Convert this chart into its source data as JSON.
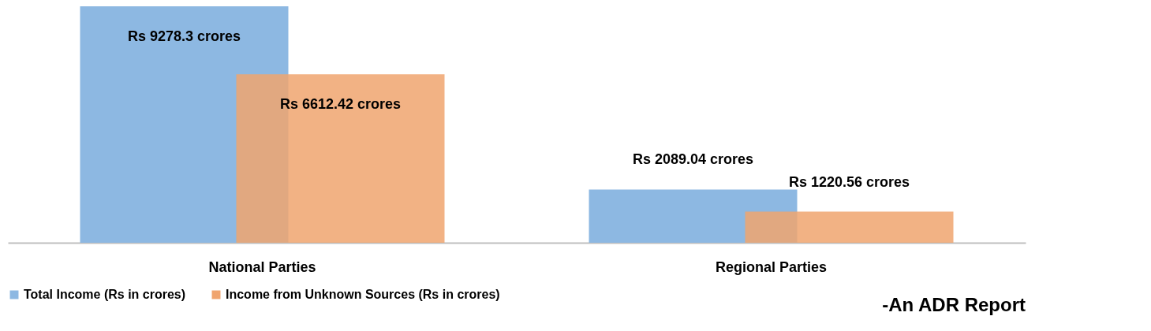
{
  "chart_data": {
    "type": "bar",
    "categories": [
      "National  Parties",
      "Regional  Parties"
    ],
    "series": [
      {
        "name": "Total Income (Rs in crores)",
        "color": "#8db8e2",
        "values": [
          9278.3,
          2089.04
        ],
        "value_labels": [
          "Rs 9278.3 crores",
          "Rs 2089.04 crores"
        ]
      },
      {
        "name": "Income from Unknown Sources  (Rs in crores)",
        "color": "#f0a46e",
        "values": [
          6612.42,
          1220.56
        ],
        "value_labels": [
          "Rs 6612.42 crores",
          "Rs 1220.56 crores"
        ]
      }
    ],
    "legend": "bottom",
    "annotations": [
      "-An ADR Report"
    ]
  }
}
